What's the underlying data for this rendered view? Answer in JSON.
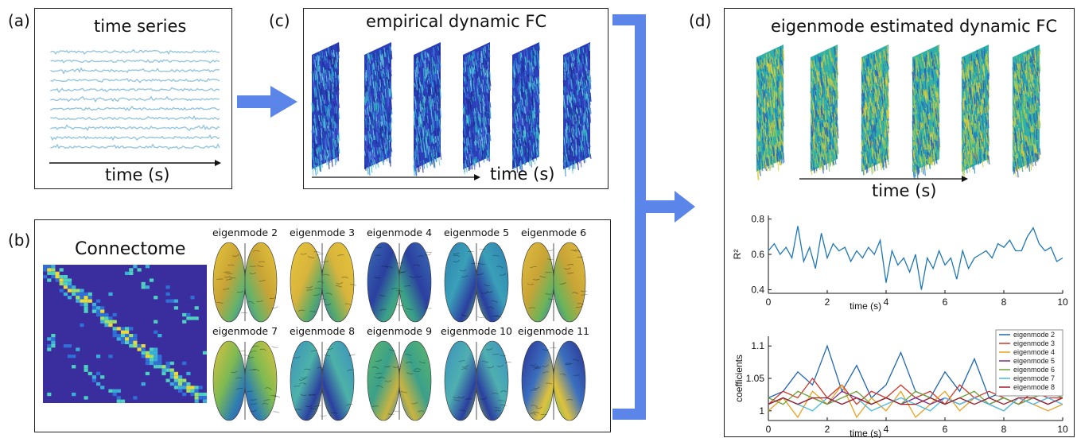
{
  "panels": {
    "a": {
      "letter": "(a)",
      "title": "time series",
      "axis_label": "time (s)"
    },
    "b": {
      "letter": "(b)",
      "title": "Connectome",
      "eigenmodes": [
        "eigenmode 2",
        "eigenmode 3",
        "eigenmode 4",
        "eigenmode 5",
        "eigenmode 6",
        "eigenmode 7",
        "eigenmode 8",
        "eigenmode 9",
        "eigenmode 10",
        "eigenmode 11"
      ]
    },
    "c": {
      "letter": "(c)",
      "title": "empirical dynamic FC",
      "axis_label": "time (s)"
    },
    "d": {
      "letter": "(d)",
      "title": "eigenmode estimated dynamic FC",
      "axis_label": "time (s)"
    }
  },
  "colors": {
    "arrow": "#5b85e8",
    "trace": "#8fc3df",
    "fc_empirical": "#2b3fb8",
    "fc_estimated": "#2fb0a8",
    "connectome_bg": "#3a2d9e"
  },
  "chart_data": [
    {
      "type": "line",
      "xlabel": "time (s)",
      "ylabel": "R²",
      "xlim": [
        0,
        10
      ],
      "ylim": [
        0.38,
        0.82
      ],
      "xticks": [
        "0",
        "2",
        "4",
        "6",
        "8",
        "10"
      ],
      "yticks": [
        "0.4",
        "0.6",
        "0.8"
      ],
      "series": [
        {
          "color": "#1f77b4",
          "x": [
            0,
            0.2,
            0.4,
            0.6,
            0.8,
            1.0,
            1.2,
            1.4,
            1.6,
            1.8,
            2.0,
            2.2,
            2.4,
            2.6,
            2.8,
            3.0,
            3.2,
            3.4,
            3.6,
            3.8,
            4.0,
            4.2,
            4.4,
            4.6,
            4.8,
            5.0,
            5.2,
            5.4,
            5.6,
            5.8,
            6.0,
            6.2,
            6.4,
            6.6,
            6.8,
            7.0,
            7.2,
            7.4,
            7.6,
            7.8,
            8.0,
            8.2,
            8.4,
            8.6,
            8.8,
            9.0,
            9.2,
            9.4,
            9.6,
            9.8,
            10.0
          ],
          "y": [
            0.62,
            0.66,
            0.6,
            0.64,
            0.58,
            0.76,
            0.56,
            0.64,
            0.52,
            0.72,
            0.58,
            0.66,
            0.62,
            0.64,
            0.56,
            0.62,
            0.58,
            0.64,
            0.6,
            0.68,
            0.44,
            0.62,
            0.54,
            0.58,
            0.5,
            0.6,
            0.4,
            0.58,
            0.52,
            0.62,
            0.54,
            0.58,
            0.46,
            0.62,
            0.52,
            0.58,
            0.6,
            0.62,
            0.58,
            0.66,
            0.64,
            0.68,
            0.62,
            0.62,
            0.7,
            0.75,
            0.66,
            0.62,
            0.64,
            0.56,
            0.58
          ]
        }
      ]
    },
    {
      "type": "line",
      "ylabel": "coefficients",
      "xlabel": "time (s)",
      "xlim": [
        0,
        10
      ],
      "ylim": [
        0.985,
        1.115
      ],
      "xticks": [
        "0",
        "2",
        "4",
        "6",
        "8",
        "10"
      ],
      "yticks": [
        "1",
        "1.05",
        "1.1"
      ],
      "legend": "right",
      "series": [
        {
          "name": "eigenmode 2",
          "color": "#1f66b4",
          "x": [
            0,
            0.5,
            1,
            1.5,
            2,
            2.5,
            3,
            3.5,
            4,
            4.5,
            5,
            5.5,
            6,
            6.5,
            7,
            7.5,
            8,
            8.5,
            9,
            9.5,
            10
          ],
          "y": [
            1.02,
            1.03,
            1.06,
            1.04,
            1.1,
            1.03,
            1.07,
            1.02,
            1.04,
            1.09,
            1.03,
            1.02,
            1.06,
            1.03,
            1.08,
            1.02,
            1.03,
            1.05,
            1.03,
            1.04,
            1.03
          ]
        },
        {
          "name": "eigenmode 3",
          "color": "#d0352b",
          "x": [
            0,
            0.5,
            1,
            1.5,
            2,
            2.5,
            3,
            3.5,
            4,
            4.5,
            5,
            5.5,
            6,
            6.5,
            7,
            7.5,
            8,
            8.5,
            9,
            9.5,
            10
          ],
          "y": [
            1.01,
            1.03,
            1.02,
            1.05,
            1.02,
            1.04,
            1.01,
            1.03,
            1.02,
            1.04,
            1.02,
            1.03,
            1.01,
            1.04,
            1.02,
            1.03,
            1.02,
            1.01,
            1.03,
            1.02,
            1.02
          ]
        },
        {
          "name": "eigenmode 4",
          "color": "#e8a020",
          "x": [
            0,
            0.5,
            1,
            1.5,
            2,
            2.5,
            3,
            3.5,
            4,
            4.5,
            5,
            5.5,
            6,
            6.5,
            7,
            7.5,
            8,
            8.5,
            9,
            9.5,
            10
          ],
          "y": [
            1.0,
            1.02,
            0.99,
            1.03,
            1.01,
            1.04,
            0.99,
            1.02,
            1.0,
            1.03,
            0.99,
            1.01,
            1.03,
            1.0,
            1.02,
            1.01,
            1.0,
            1.02,
            1.01,
            1.0,
            1.01
          ]
        },
        {
          "name": "eigenmode 5",
          "color": "#7d2d8e",
          "x": [
            0,
            0.5,
            1,
            1.5,
            2,
            2.5,
            3,
            3.5,
            4,
            4.5,
            5,
            5.5,
            6,
            6.5,
            7,
            7.5,
            8,
            8.5,
            9,
            9.5,
            10
          ],
          "y": [
            1.01,
            1.02,
            1.01,
            1.02,
            1.01,
            1.03,
            1.02,
            1.01,
            1.02,
            1.01,
            1.02,
            1.01,
            1.02,
            1.01,
            1.02,
            1.01,
            1.02,
            1.01,
            1.02,
            1.01,
            1.02
          ]
        },
        {
          "name": "eigenmode 6",
          "color": "#6aa53a",
          "x": [
            0,
            0.5,
            1,
            1.5,
            2,
            2.5,
            3,
            3.5,
            4,
            4.5,
            5,
            5.5,
            6,
            6.5,
            7,
            7.5,
            8,
            8.5,
            9,
            9.5,
            10
          ],
          "y": [
            1.02,
            1.01,
            1.03,
            1.02,
            1.01,
            1.02,
            1.03,
            1.01,
            1.02,
            1.01,
            1.03,
            1.02,
            1.01,
            1.02,
            1.03,
            1.01,
            1.02,
            1.01,
            1.02,
            1.03,
            1.02
          ]
        },
        {
          "name": "eigenmode 7",
          "color": "#4ab9e6",
          "x": [
            0,
            0.5,
            1,
            1.5,
            2,
            2.5,
            3,
            3.5,
            4,
            4.5,
            5,
            5.5,
            6,
            6.5,
            7,
            7.5,
            8,
            8.5,
            9,
            9.5,
            10
          ],
          "y": [
            1.01,
            1.02,
            1.01,
            1.0,
            1.02,
            1.01,
            1.02,
            1.0,
            1.01,
            1.02,
            1.01,
            1.0,
            1.02,
            1.01,
            1.02,
            1.01,
            1.0,
            1.02,
            1.01,
            1.02,
            1.01
          ]
        },
        {
          "name": "eigenmode 8",
          "color": "#a01c2c",
          "x": [
            0,
            0.5,
            1,
            1.5,
            2,
            2.5,
            3,
            3.5,
            4,
            4.5,
            5,
            5.5,
            6,
            6.5,
            7,
            7.5,
            8,
            8.5,
            9,
            9.5,
            10
          ],
          "y": [
            1.01,
            1.02,
            1.01,
            1.02,
            1.02,
            1.01,
            1.02,
            1.01,
            1.02,
            1.01,
            1.01,
            1.02,
            1.01,
            1.02,
            1.01,
            1.02,
            1.01,
            1.02,
            1.02,
            1.01,
            1.02
          ]
        }
      ]
    }
  ]
}
